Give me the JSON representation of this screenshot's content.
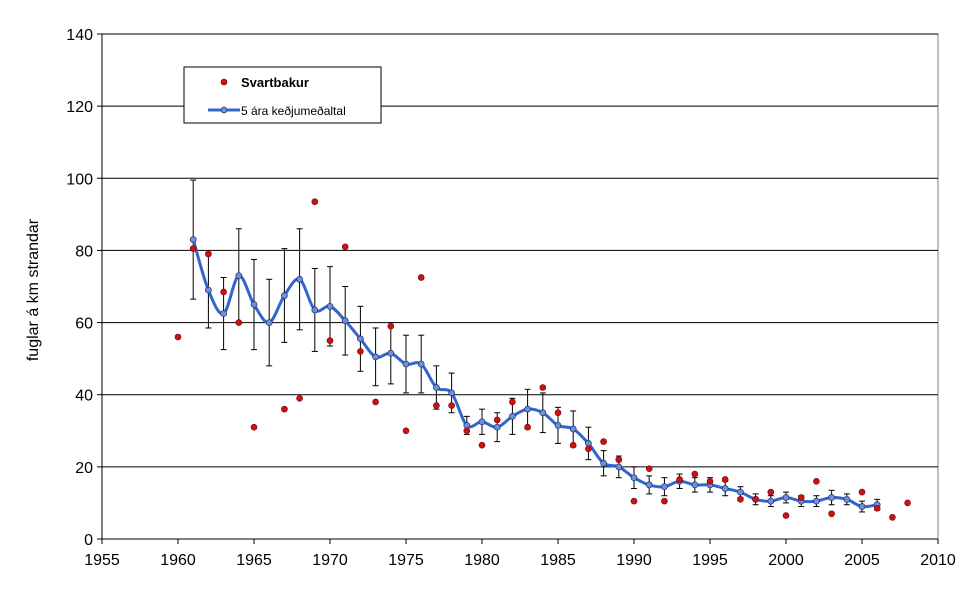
{
  "chart_data": {
    "type": "scatter",
    "title": "",
    "xlabel": "",
    "ylabel": "fuglar á km strandar",
    "xlim": [
      1955,
      2010
    ],
    "ylim": [
      0,
      140
    ],
    "xticks": [
      1955,
      1960,
      1965,
      1970,
      1975,
      1980,
      1985,
      1990,
      1995,
      2000,
      2005,
      2010
    ],
    "yticks": [
      0,
      20,
      40,
      60,
      80,
      100,
      120,
      140
    ],
    "grid": "horizontal",
    "legend_position": "top-left",
    "colors": {
      "points": "#cc1111",
      "line": "#3366cc",
      "marker": "#6f8fd8"
    },
    "series": [
      {
        "name": "Svartbakur",
        "kind": "points",
        "x": [
          1960,
          1961,
          1962,
          1963,
          1964,
          1965,
          1967,
          1968,
          1969,
          1970,
          1971,
          1972,
          1973,
          1974,
          1975,
          1976,
          1977,
          1978,
          1979,
          1980,
          1981,
          1982,
          1983,
          1984,
          1985,
          1986,
          1987,
          1988,
          1989,
          1990,
          1991,
          1992,
          1993,
          1994,
          1995,
          1996,
          1997,
          1998,
          1999,
          2000,
          2001,
          2002,
          2003,
          2005,
          2006,
          2007,
          2008
        ],
        "y": [
          56,
          80.5,
          79,
          68.5,
          60,
          31,
          36,
          39,
          93.5,
          55,
          81,
          52,
          38,
          59,
          30,
          72.5,
          37,
          37,
          30,
          26,
          33,
          38,
          31,
          42,
          35,
          26,
          25,
          27,
          22,
          10.5,
          19.5,
          10.5,
          16.5,
          18,
          16,
          16.5,
          11,
          11,
          13,
          6.5,
          11.5,
          16,
          7,
          13,
          8.5,
          6,
          10
        ]
      },
      {
        "name": "5 ára keðjumeðaltal",
        "kind": "line",
        "x": [
          1961,
          1962,
          1963,
          1964,
          1965,
          1966,
          1967,
          1968,
          1969,
          1970,
          1971,
          1972,
          1973,
          1974,
          1975,
          1976,
          1977,
          1978,
          1979,
          1980,
          1981,
          1982,
          1983,
          1984,
          1985,
          1986,
          1987,
          1988,
          1989,
          1990,
          1991,
          1992,
          1993,
          1994,
          1995,
          1996,
          1997,
          1998,
          1999,
          2000,
          2001,
          2002,
          2003,
          2004,
          2005,
          2006
        ],
        "y": [
          83,
          69,
          62.5,
          73,
          65,
          60,
          67.5,
          72,
          63.5,
          64.5,
          60.5,
          55.5,
          50.5,
          51.5,
          48.5,
          48.5,
          42,
          40.5,
          31.5,
          32.5,
          31,
          34,
          36,
          35,
          31.5,
          30.5,
          26.5,
          21,
          20,
          17,
          15,
          14.5,
          16,
          15,
          15,
          14,
          13,
          11,
          10.5,
          11.5,
          10.5,
          10.5,
          11.5,
          11,
          9,
          9.5
        ],
        "err": [
          16.5,
          10.5,
          10,
          13,
          12.5,
          12,
          13,
          14,
          11.5,
          11,
          9.5,
          9,
          8,
          8.5,
          8,
          8,
          6,
          5.5,
          2.5,
          3.5,
          4,
          5,
          5.5,
          5.5,
          5,
          5,
          4.5,
          3.5,
          3,
          3,
          2.5,
          2.5,
          2,
          2,
          2,
          2,
          1.5,
          1.5,
          1.5,
          1.5,
          1.5,
          1.5,
          2,
          1.5,
          1.5,
          1.5
        ]
      }
    ]
  }
}
